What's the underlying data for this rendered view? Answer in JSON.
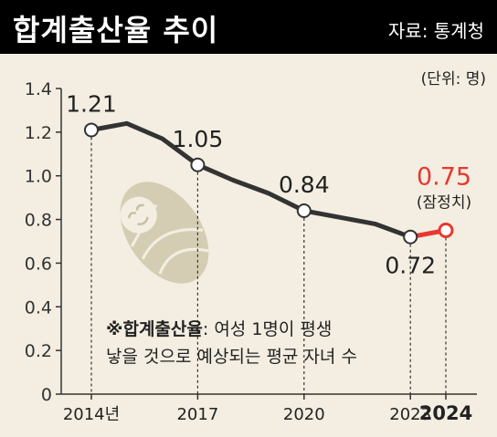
{
  "header": {
    "title": "합계출산율 추이",
    "source": "자료: 통계청"
  },
  "unit_label": "(단위: 명)",
  "note": {
    "term": "※합계출산율",
    "line1_rest": ": 여성 1명이 평생",
    "line2": "낳을 것으로 예상되는 평균 자녀 수"
  },
  "chart_data": {
    "type": "line",
    "title": "합계출산율 추이",
    "ylabel": "",
    "xlabel": "",
    "ylim": [
      0,
      1.4
    ],
    "yticks": [
      "0",
      "0.2",
      "0.4",
      "0.6",
      "0.8",
      "1.0",
      "1.2",
      "1.4"
    ],
    "xticks": [
      {
        "x": 2014,
        "label": "2014년",
        "bold": false
      },
      {
        "x": 2017,
        "label": "2017",
        "bold": false
      },
      {
        "x": 2020,
        "label": "2020",
        "bold": false
      },
      {
        "x": 2023,
        "label": "2023",
        "bold": false
      },
      {
        "x": 2024,
        "label": "2024",
        "bold": true
      }
    ],
    "xlim": [
      2013.5,
      2024.5
    ],
    "series": [
      {
        "color": "#333333",
        "points": [
          {
            "x": 2014,
            "y": 1.21
          },
          {
            "x": 2015,
            "y": 1.24
          },
          {
            "x": 2016,
            "y": 1.17
          },
          {
            "x": 2017,
            "y": 1.05
          },
          {
            "x": 2018,
            "y": 0.98
          },
          {
            "x": 2019,
            "y": 0.92
          },
          {
            "x": 2020,
            "y": 0.84
          },
          {
            "x": 2021,
            "y": 0.81
          },
          {
            "x": 2022,
            "y": 0.78
          },
          {
            "x": 2023,
            "y": 0.72
          }
        ]
      },
      {
        "color": "#e8382f",
        "points": [
          {
            "x": 2023,
            "y": 0.72
          },
          {
            "x": 2024,
            "y": 0.75
          }
        ]
      }
    ],
    "data_labels": [
      {
        "x": 2014,
        "y": 1.21,
        "text": "1.21"
      },
      {
        "x": 2017,
        "y": 1.05,
        "text": "1.05"
      },
      {
        "x": 2020,
        "y": 0.84,
        "text": "0.84"
      },
      {
        "x": 2023,
        "y": 0.72,
        "text": "0.72"
      },
      {
        "x": 2024,
        "y": 0.75,
        "text": "0.75",
        "note": "(잠정치)",
        "color": "#e8382f"
      }
    ],
    "grid": false,
    "illustration": "baby-icon"
  }
}
